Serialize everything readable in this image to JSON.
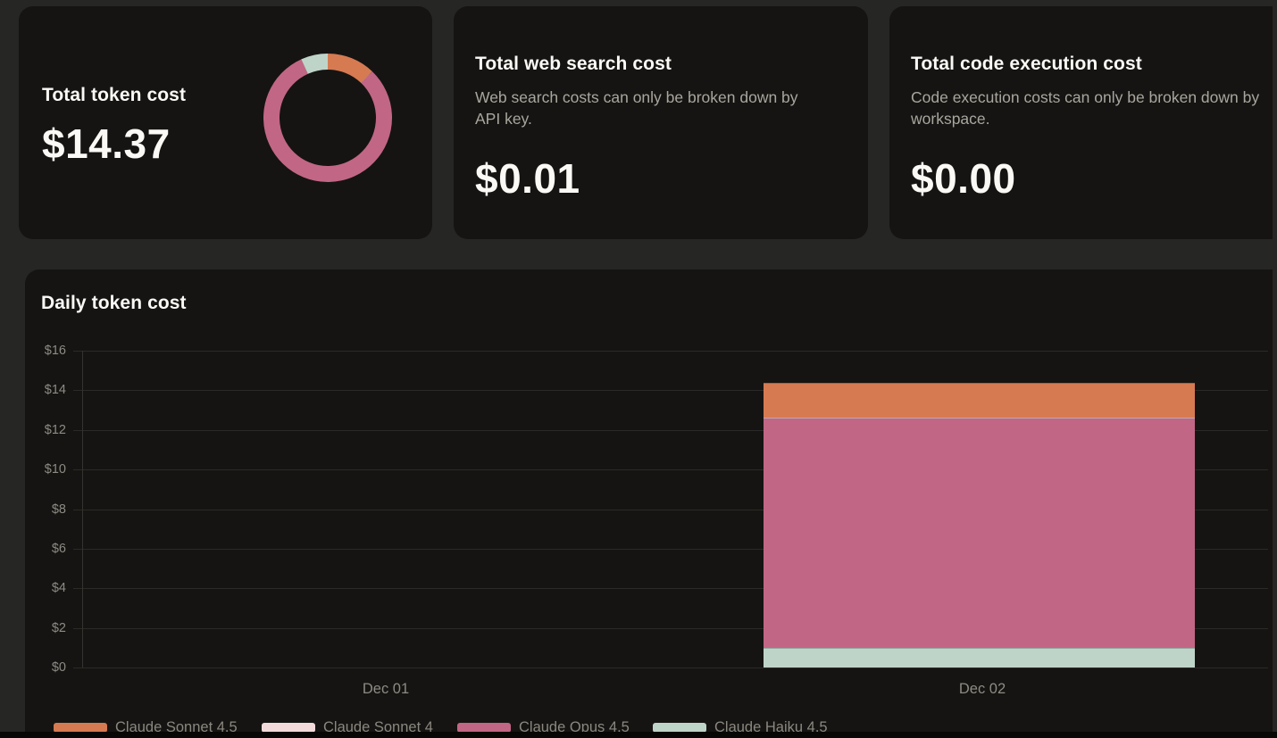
{
  "summary_cards": {
    "token_cost": {
      "title": "Total token cost",
      "value": "$14.37"
    },
    "web_search": {
      "title": "Total web search cost",
      "description": "Web search costs can only be broken down by API key.",
      "value": "$0.01"
    },
    "code_execution": {
      "title": "Total code execution cost",
      "description": "Code execution costs can only be broken down by workspace.",
      "value": "$0.00"
    }
  },
  "daily_chart": {
    "title": "Daily token cost"
  },
  "chart_data": [
    {
      "type": "pie",
      "donut": true,
      "title": "Total token cost",
      "total": 14.37,
      "labels": [
        "Claude Sonnet 4.5",
        "Claude Sonnet 4",
        "Claude Opus 4.5",
        "Claude Haiku 4.5"
      ],
      "values": [
        1.74,
        0.01,
        11.65,
        0.97
      ],
      "colors": [
        "#d67a52",
        "#f2dadb",
        "#c26685",
        "#bfd4c9"
      ]
    },
    {
      "type": "area",
      "stacked": true,
      "title": "Daily token cost",
      "x": [
        "Dec 01",
        "Dec 02"
      ],
      "series": [
        {
          "name": "Claude Sonnet 4.5",
          "color": "#d67a52",
          "values": [
            0,
            1.74
          ]
        },
        {
          "name": "Claude Sonnet 4",
          "color": "#f2dadb",
          "values": [
            0,
            0.01
          ]
        },
        {
          "name": "Claude Opus 4.5",
          "color": "#c26685",
          "values": [
            0,
            11.65
          ]
        },
        {
          "name": "Claude Haiku 4.5",
          "color": "#bfd4c9",
          "values": [
            0,
            0.97
          ]
        }
      ],
      "ylim": [
        0,
        16
      ],
      "ytick_labels": [
        "$16",
        "$14",
        "$12",
        "$10",
        "$8",
        "$6",
        "$4",
        "$2",
        "$0"
      ],
      "grid": true,
      "legend_position": "bottom"
    }
  ],
  "colors": {
    "page_bg": "#262624",
    "card_bg": "#151412",
    "title_text": "#faf9f5",
    "desc_text": "#a8a69d",
    "axis_text": "#8d8b83",
    "legend_text": "#8a887f",
    "gridline": "#2b2a27",
    "bottom_bar": "#070706"
  }
}
